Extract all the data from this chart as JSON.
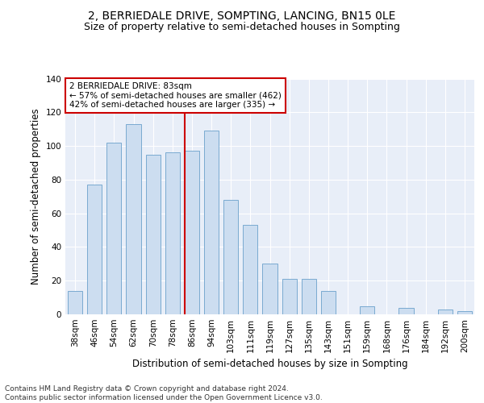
{
  "title": "2, BERRIEDALE DRIVE, SOMPTING, LANCING, BN15 0LE",
  "subtitle": "Size of property relative to semi-detached houses in Sompting",
  "xlabel": "Distribution of semi-detached houses by size in Sompting",
  "ylabel": "Number of semi-detached properties",
  "categories": [
    "38sqm",
    "46sqm",
    "54sqm",
    "62sqm",
    "70sqm",
    "78sqm",
    "86sqm",
    "94sqm",
    "103sqm",
    "111sqm",
    "119sqm",
    "127sqm",
    "135sqm",
    "143sqm",
    "151sqm",
    "159sqm",
    "168sqm",
    "176sqm",
    "184sqm",
    "192sqm",
    "200sqm"
  ],
  "values": [
    14,
    77,
    102,
    113,
    95,
    96,
    97,
    109,
    68,
    53,
    30,
    21,
    21,
    14,
    0,
    5,
    0,
    4,
    0,
    3,
    2
  ],
  "bar_color_fill": "#ccddf0",
  "bar_color_edge": "#7aaad0",
  "property_line_color": "#cc0000",
  "annotation_title": "2 BERRIEDALE DRIVE: 83sqm",
  "annotation_line1": "← 57% of semi-detached houses are smaller (462)",
  "annotation_line2": "42% of semi-detached houses are larger (335) →",
  "annotation_box_color": "#cc0000",
  "annotation_bg": "#ffffff",
  "ylim": [
    0,
    140
  ],
  "yticks": [
    0,
    20,
    40,
    60,
    80,
    100,
    120,
    140
  ],
  "background_color": "#e8eef8",
  "grid_color": "#ffffff",
  "footer_line1": "Contains HM Land Registry data © Crown copyright and database right 2024.",
  "footer_line2": "Contains public sector information licensed under the Open Government Licence v3.0.",
  "title_fontsize": 10,
  "subtitle_fontsize": 9,
  "axis_label_fontsize": 8.5,
  "tick_fontsize": 7.5,
  "footer_fontsize": 6.5
}
